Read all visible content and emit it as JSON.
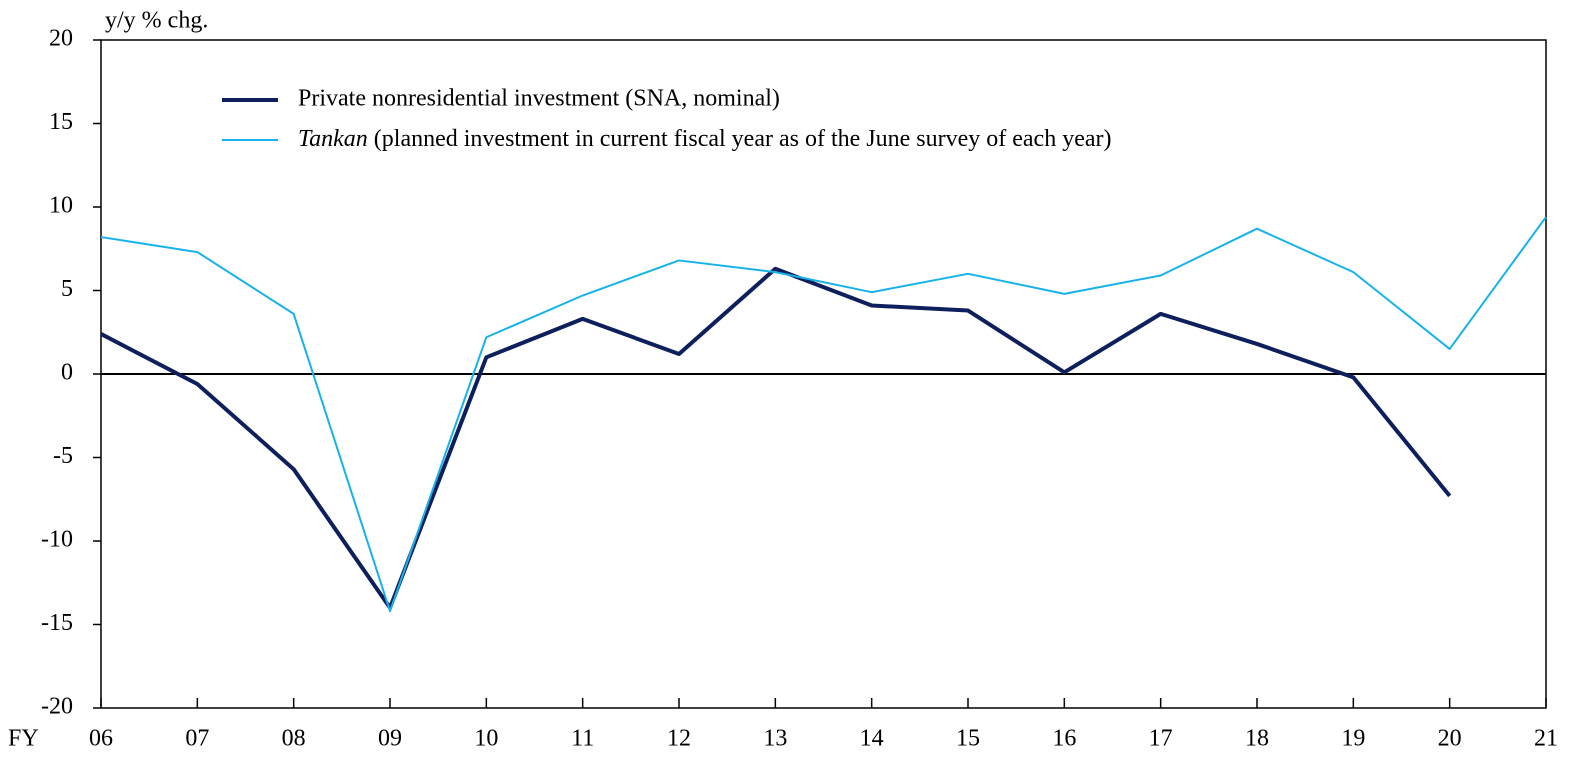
{
  "chart_data": {
    "type": "line",
    "y_label": "y/y % chg.",
    "x_label": "FY",
    "categories": [
      "06",
      "07",
      "08",
      "09",
      "10",
      "11",
      "12",
      "13",
      "14",
      "15",
      "16",
      "17",
      "18",
      "19",
      "20",
      "21"
    ],
    "series": [
      {
        "name": "Private nonresidential investment (SNA, nominal)",
        "color": "#0d1f5c",
        "width": 4,
        "values": [
          2.4,
          -0.6,
          -5.7,
          -14.0,
          1.0,
          3.3,
          1.2,
          6.3,
          4.1,
          3.8,
          0.1,
          3.6,
          1.8,
          -0.2,
          -7.3,
          null
        ]
      },
      {
        "name": "Tankan (planned investment in current fiscal year as of the June survey of each year)",
        "color": "#17b2ea",
        "width": 2,
        "values": [
          8.2,
          7.3,
          3.6,
          -14.2,
          2.2,
          4.7,
          6.8,
          6.1,
          4.9,
          6.0,
          4.8,
          5.9,
          8.7,
          6.1,
          1.5,
          9.4
        ]
      }
    ],
    "ylim": [
      -20,
      20
    ],
    "yticks": [
      -20,
      -15,
      -10,
      -5,
      0,
      5,
      10,
      15,
      20
    ],
    "grid": false
  }
}
